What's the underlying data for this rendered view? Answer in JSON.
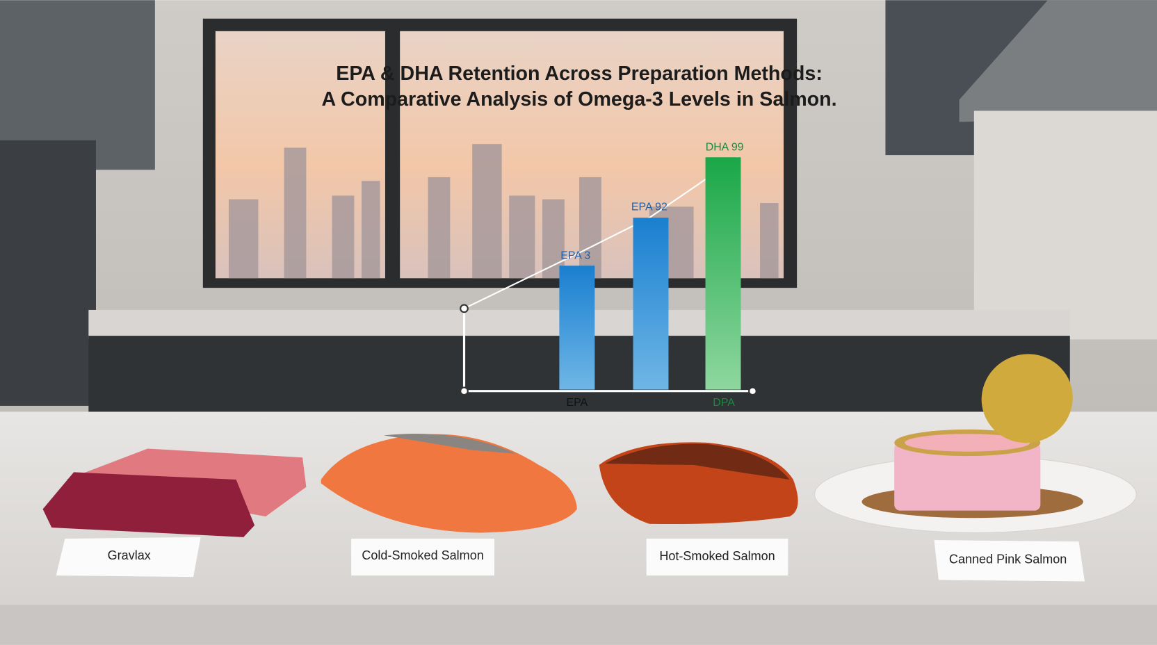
{
  "title": {
    "line1": "EPA & DHA Retention Across Preparation Methods:",
    "line2": "A Comparative Analysis of Omega-3 Levels in Salmon."
  },
  "chart": {
    "bar_labels": [
      "EPA 3",
      "EPA 92",
      "DHA 99"
    ],
    "axis_labels": [
      "EPA",
      "DPA"
    ]
  },
  "items": [
    "Gravlax",
    "Cold-Smoked Salmon",
    "Hot-Smoked Salmon",
    "Canned Pink Salmon"
  ]
}
